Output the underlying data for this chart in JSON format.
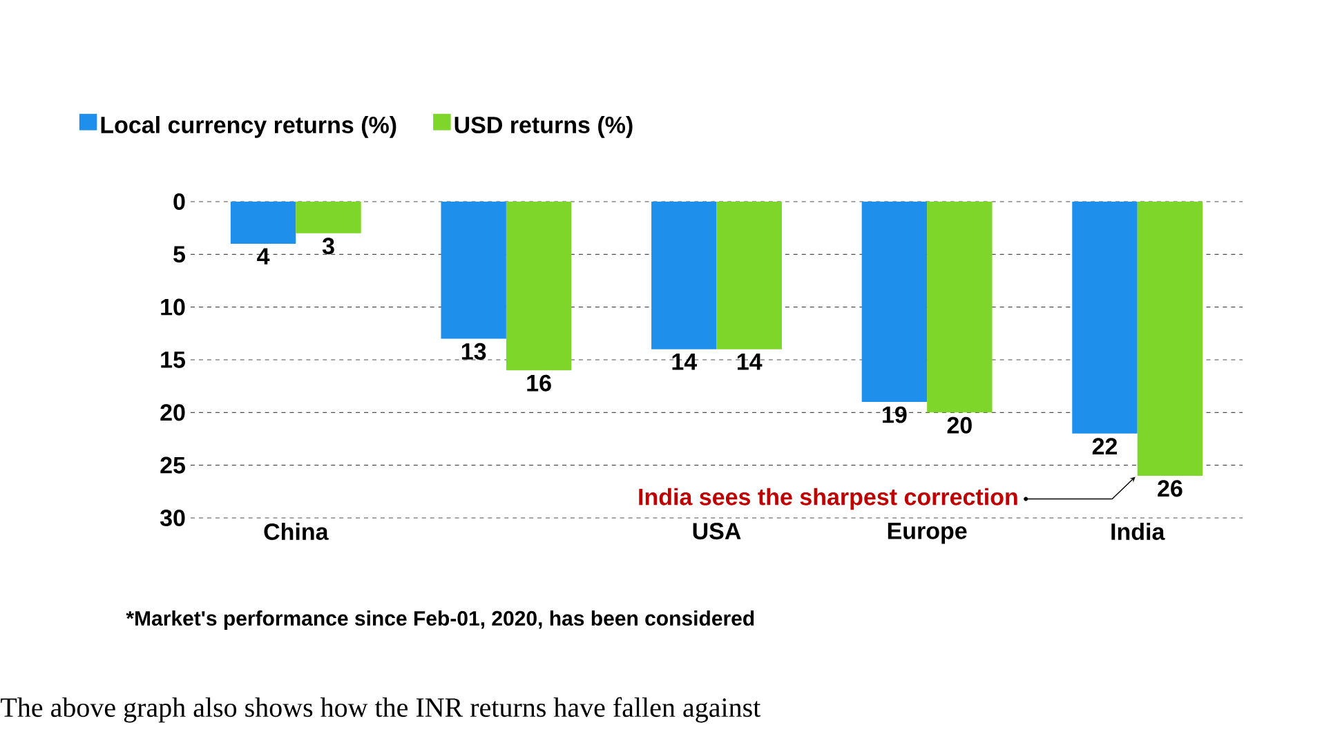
{
  "chart_data": {
    "type": "bar",
    "categories": [
      "China",
      null,
      "USA",
      "Europe",
      "India"
    ],
    "series": [
      {
        "name": "Local currency returns (%)",
        "color": "#1e8fea",
        "values": [
          4,
          13,
          14,
          19,
          22
        ]
      },
      {
        "name": "USD returns (%)",
        "color": "#7fd62a",
        "values": [
          3,
          16,
          14,
          20,
          26
        ]
      }
    ],
    "ylim": [
      30,
      0
    ],
    "yticks": [
      0,
      5,
      10,
      15,
      20,
      25,
      30
    ],
    "grid": "y",
    "legend": "top left",
    "data_labels": true,
    "annotations": [
      {
        "text": "India sees the sharpest correction",
        "x": "India",
        "y": 26
      },
      "*Market's performance since Feb-01, 2020, has been considered",
      "The above graph also shows how the INR returns have fallen against"
    ]
  }
}
